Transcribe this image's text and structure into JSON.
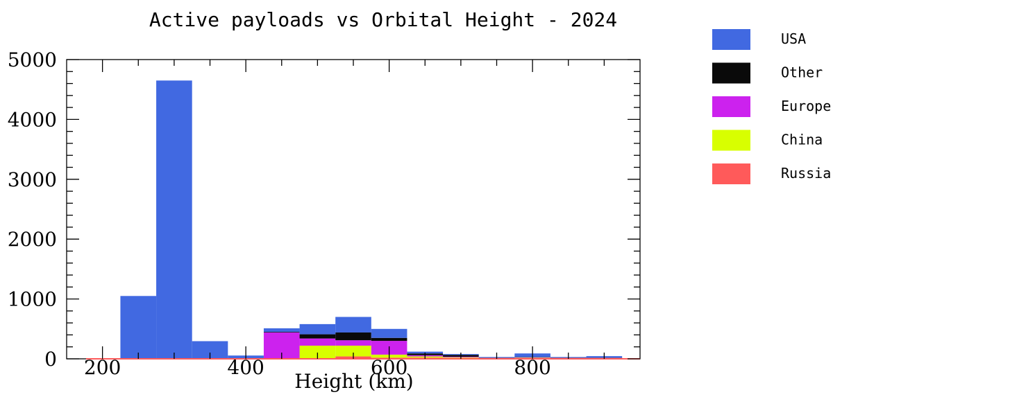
{
  "chart_data": {
    "type": "bar",
    "stacked": true,
    "title": "Active payloads vs Orbital Height - 2024",
    "xlabel": "Height (km)",
    "ylabel": "",
    "xlim": [
      150,
      950
    ],
    "ylim": [
      0,
      5000
    ],
    "x_ticks": [
      200,
      400,
      600,
      800
    ],
    "y_ticks": [
      0,
      1000,
      2000,
      3000,
      4000,
      5000
    ],
    "bin_edges": [
      225,
      275,
      325,
      375,
      425,
      475,
      525,
      575,
      625,
      675,
      725,
      775,
      825,
      875,
      925
    ],
    "series": [
      {
        "name": "Russia",
        "color": "#ff5a5a",
        "values": [
          5,
          10,
          5,
          5,
          5,
          10,
          40,
          20,
          20,
          15,
          5,
          15,
          5,
          5
        ]
      },
      {
        "name": "China",
        "color": "#d8ff00",
        "values": [
          0,
          0,
          0,
          0,
          5,
          210,
          180,
          50,
          20,
          10,
          5,
          5,
          5,
          5
        ]
      },
      {
        "name": "Europe",
        "color": "#cc22ee",
        "values": [
          0,
          0,
          0,
          0,
          430,
          120,
          90,
          230,
          20,
          10,
          5,
          5,
          5,
          5
        ]
      },
      {
        "name": "Other",
        "color": "#0a0a0a",
        "values": [
          0,
          0,
          0,
          0,
          10,
          70,
          130,
          50,
          30,
          30,
          5,
          5,
          5,
          5
        ]
      },
      {
        "name": "USA",
        "color": "#4169e1",
        "values": [
          1045,
          4640,
          290,
          50,
          60,
          170,
          260,
          150,
          30,
          15,
          10,
          60,
          10,
          25
        ]
      }
    ],
    "legend": {
      "placement": "right",
      "order": [
        "USA",
        "Other",
        "Europe",
        "China",
        "Russia"
      ]
    }
  }
}
